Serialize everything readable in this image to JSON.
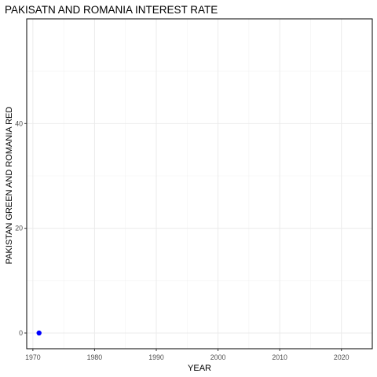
{
  "chart_data": {
    "type": "scatter",
    "title": "PAKISATN AND ROMANIA INTEREST RATE",
    "xlabel": "YEAR",
    "ylabel": "PAKISTAN GREEN AND ROMANIA RED",
    "xlim": [
      1969,
      2025
    ],
    "ylim": [
      -3,
      60
    ],
    "x_ticks": [
      1970,
      1980,
      1990,
      2000,
      2010,
      2020
    ],
    "y_ticks": [
      0,
      20,
      40
    ],
    "x_minor_ticks": [
      1975,
      1985,
      1995,
      2005,
      2015
    ],
    "y_minor_ticks": [
      10,
      30,
      50
    ],
    "grid": true,
    "series": [
      {
        "color": "#0000ff",
        "points": [
          {
            "x": 1971,
            "y": 0
          }
        ]
      }
    ]
  }
}
